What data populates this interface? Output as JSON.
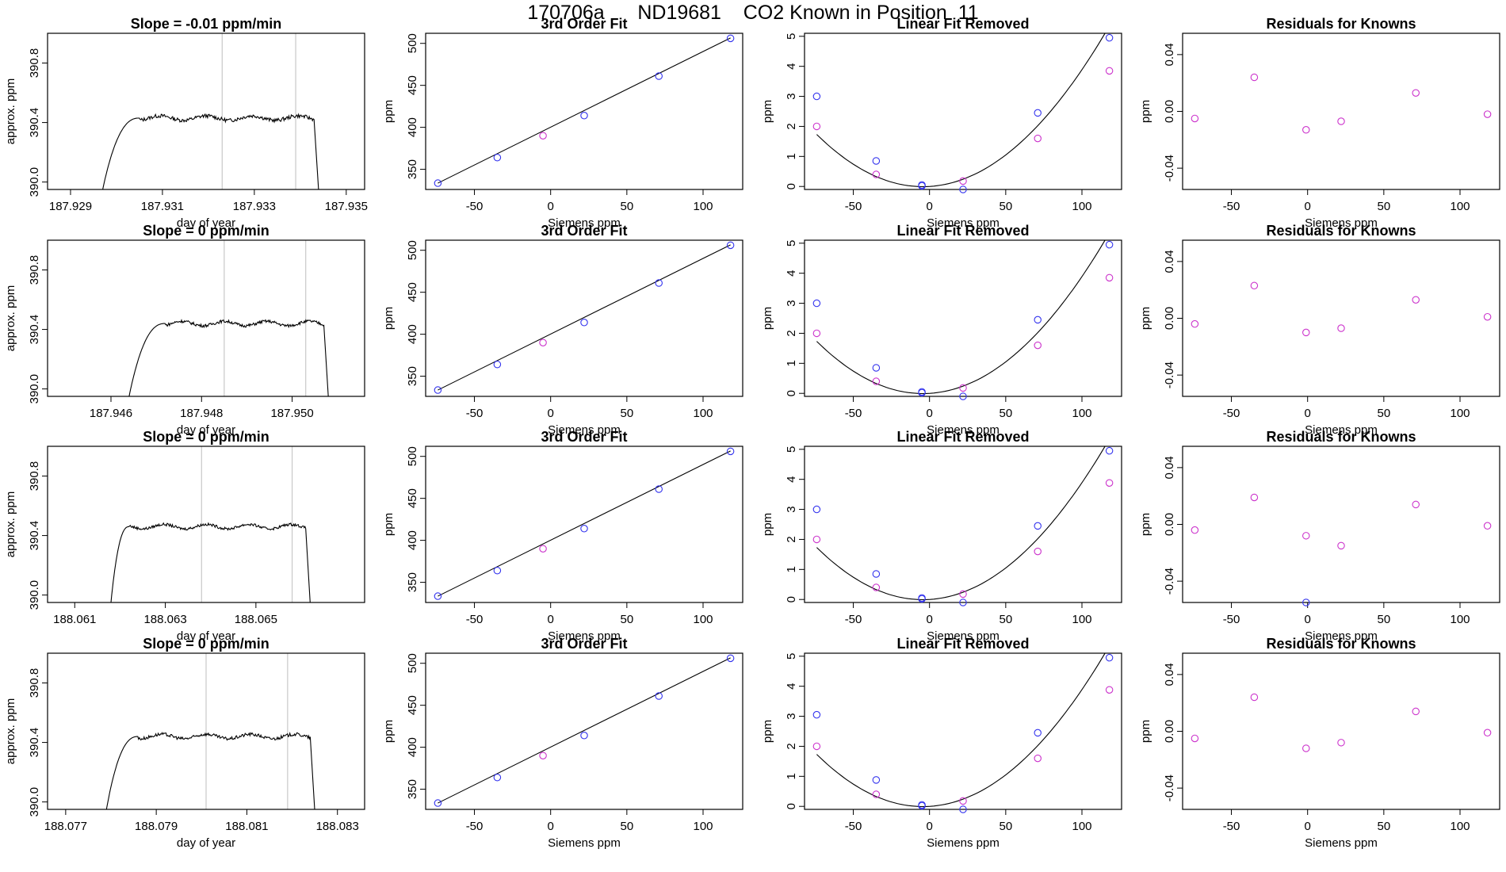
{
  "page": {
    "title": "170706a      ND19681    CO2 Known in Position  11"
  },
  "colors": {
    "frame": "#000000",
    "trace": "#000000",
    "vline": "#c8c8c8",
    "point_blue": "#3333ee",
    "point_magenta": "#cc33cc",
    "curve": "#000000"
  },
  "chart_data": [
    {
      "type": "line",
      "panel": "trace",
      "row": 0,
      "title": "Slope =  -0.01  ppm/min",
      "xlabel": "day of year",
      "ylabel": "approx. ppm",
      "xlim": [
        187.9285,
        187.9354
      ],
      "ylim": [
        389.95,
        391.0
      ],
      "xticks": [
        187.929,
        187.931,
        187.933,
        187.935
      ],
      "xtick_labels": [
        "187.929",
        "187.931",
        "187.933",
        "187.935"
      ],
      "yticks": [
        390.0,
        390.4,
        390.8
      ],
      "ytick_labels": [
        "390.0",
        "390.4",
        "390.8"
      ],
      "vlines": [
        187.9323,
        187.9339
      ],
      "trace": {
        "x_start": 187.9297,
        "x_plateau": 187.9305,
        "x_end": 187.9343,
        "x_drop": 187.9344,
        "y_plateau": 390.43,
        "noise": 0.025,
        "y_start": 389.95
      }
    },
    {
      "type": "line",
      "panel": "trace",
      "row": 1,
      "title": "Slope =  0  ppm/min",
      "xlabel": "day of year",
      "ylabel": "approx. ppm",
      "xlim": [
        187.9446,
        187.9516
      ],
      "ylim": [
        389.95,
        391.0
      ],
      "xticks": [
        187.946,
        187.948,
        187.95
      ],
      "xtick_labels": [
        "187.946",
        "187.948",
        "187.950"
      ],
      "yticks": [
        390.0,
        390.4,
        390.8
      ],
      "ytick_labels": [
        "390.0",
        "390.4",
        "390.8"
      ],
      "vlines": [
        187.9485,
        187.9503
      ],
      "trace": {
        "x_start": 187.9464,
        "x_plateau": 187.9472,
        "x_end": 187.9507,
        "x_drop": 187.9508,
        "y_plateau": 390.44,
        "noise": 0.02,
        "y_start": 389.95
      }
    },
    {
      "type": "line",
      "panel": "trace",
      "row": 2,
      "title": "Slope =  0  ppm/min",
      "xlabel": "day of year",
      "ylabel": "approx. ppm",
      "xlim": [
        188.0604,
        188.0674
      ],
      "ylim": [
        389.95,
        391.0
      ],
      "xticks": [
        188.061,
        188.063,
        188.065
      ],
      "xtick_labels": [
        "188.061",
        "188.063",
        "188.065"
      ],
      "yticks": [
        390.0,
        390.4,
        390.8
      ],
      "ytick_labels": [
        "390.0",
        "390.4",
        "390.8"
      ],
      "vlines": [
        188.0638,
        188.0658
      ],
      "trace": {
        "x_start": 188.0618,
        "x_plateau": 188.0622,
        "x_end": 188.0661,
        "x_drop": 188.0662,
        "y_plateau": 390.46,
        "noise": 0.018,
        "y_start": 389.95
      }
    },
    {
      "type": "line",
      "panel": "trace",
      "row": 3,
      "title": "Slope =  0  ppm/min",
      "xlabel": "day of year",
      "ylabel": "approx. ppm",
      "xlim": [
        188.0766,
        188.0836
      ],
      "ylim": [
        389.95,
        391.0
      ],
      "xticks": [
        188.077,
        188.079,
        188.081,
        188.083
      ],
      "xtick_labels": [
        "188.077",
        "188.079",
        "188.081",
        "188.083"
      ],
      "yticks": [
        390.0,
        390.4,
        390.8
      ],
      "ytick_labels": [
        "390.0",
        "390.4",
        "390.8"
      ],
      "vlines": [
        188.0801,
        188.0819
      ],
      "trace": {
        "x_start": 188.0779,
        "x_plateau": 188.0786,
        "x_end": 188.0824,
        "x_drop": 188.0825,
        "y_plateau": 390.44,
        "noise": 0.022,
        "y_start": 389.95
      }
    },
    {
      "type": "scatter",
      "panel": "fit",
      "row": 0,
      "title": "3rd Order Fit",
      "xlabel": "Siemens ppm",
      "ylabel": "ppm",
      "xlim": [
        -82,
        126
      ],
      "ylim": [
        326,
        512
      ],
      "xticks": [
        -50,
        0,
        50,
        100
      ],
      "xtick_labels": [
        "-50",
        "0",
        "50",
        "100"
      ],
      "yticks": [
        350,
        400,
        450,
        500
      ],
      "ytick_labels": [
        "350",
        "400",
        "450",
        "500"
      ],
      "line": [
        [
          -74,
          333.5
        ],
        [
          118,
          506.5
        ]
      ],
      "points_blue": [
        [
          -74,
          333.5
        ],
        [
          -35,
          364
        ],
        [
          22,
          414
        ],
        [
          71,
          461
        ],
        [
          118,
          506
        ]
      ],
      "points_magenta": [
        [
          -5,
          390
        ]
      ]
    },
    {
      "type": "scatter",
      "panel": "fit",
      "row": 1,
      "title": "3rd Order Fit",
      "xlabel": "Siemens ppm",
      "ylabel": "ppm",
      "xlim": [
        -82,
        126
      ],
      "ylim": [
        326,
        512
      ],
      "xticks": [
        -50,
        0,
        50,
        100
      ],
      "xtick_labels": [
        "-50",
        "0",
        "50",
        "100"
      ],
      "yticks": [
        350,
        400,
        450,
        500
      ],
      "ytick_labels": [
        "350",
        "400",
        "450",
        "500"
      ],
      "line": [
        [
          -74,
          333.5
        ],
        [
          118,
          506.5
        ]
      ],
      "points_blue": [
        [
          -74,
          333.5
        ],
        [
          -35,
          364
        ],
        [
          22,
          414
        ],
        [
          71,
          461
        ],
        [
          118,
          506
        ]
      ],
      "points_magenta": [
        [
          -5,
          390
        ]
      ]
    },
    {
      "type": "scatter",
      "panel": "fit",
      "row": 2,
      "title": "3rd Order Fit",
      "xlabel": "Siemens ppm",
      "ylabel": "ppm",
      "xlim": [
        -82,
        126
      ],
      "ylim": [
        326,
        512
      ],
      "xticks": [
        -50,
        0,
        50,
        100
      ],
      "xtick_labels": [
        "-50",
        "0",
        "50",
        "100"
      ],
      "yticks": [
        350,
        400,
        450,
        500
      ],
      "ytick_labels": [
        "350",
        "400",
        "450",
        "500"
      ],
      "line": [
        [
          -74,
          333.5
        ],
        [
          118,
          506.5
        ]
      ],
      "points_blue": [
        [
          -74,
          333.5
        ],
        [
          -35,
          364
        ],
        [
          22,
          414
        ],
        [
          71,
          461
        ],
        [
          118,
          506
        ]
      ],
      "points_magenta": [
        [
          -5,
          390
        ]
      ]
    },
    {
      "type": "scatter",
      "panel": "fit",
      "row": 3,
      "title": "3rd Order Fit",
      "xlabel": "Siemens ppm",
      "ylabel": "ppm",
      "xlim": [
        -82,
        126
      ],
      "ylim": [
        326,
        512
      ],
      "xticks": [
        -50,
        0,
        50,
        100
      ],
      "xtick_labels": [
        "-50",
        "0",
        "50",
        "100"
      ],
      "yticks": [
        350,
        400,
        450,
        500
      ],
      "ytick_labels": [
        "350",
        "400",
        "450",
        "500"
      ],
      "line": [
        [
          -74,
          333.5
        ],
        [
          118,
          506.5
        ]
      ],
      "points_blue": [
        [
          -74,
          333.5
        ],
        [
          -35,
          364
        ],
        [
          22,
          414
        ],
        [
          71,
          461
        ],
        [
          118,
          506
        ]
      ],
      "points_magenta": [
        [
          -5,
          390
        ]
      ]
    },
    {
      "type": "scatter",
      "panel": "linear",
      "row": 0,
      "title": "Linear Fit Removed",
      "xlabel": "Siemens ppm",
      "ylabel": "ppm",
      "xlim": [
        -82,
        126
      ],
      "ylim": [
        -0.1,
        5.1
      ],
      "xticks": [
        -50,
        0,
        50,
        100
      ],
      "xtick_labels": [
        "-50",
        "0",
        "50",
        "100"
      ],
      "yticks": [
        0,
        1,
        2,
        3,
        4,
        5
      ],
      "ytick_labels": [
        "0",
        "1",
        "2",
        "3",
        "4",
        "5"
      ],
      "curve": {
        "a": 0.000358,
        "b": 0.00308,
        "c": 0.0,
        "x0": -74,
        "x1": 118
      },
      "points_blue": [
        [
          -74,
          3.0
        ],
        [
          -35,
          0.85
        ],
        [
          -5,
          0.05
        ],
        [
          -5,
          0.02
        ],
        [
          22,
          -0.1
        ],
        [
          71,
          2.45
        ],
        [
          118,
          4.95
        ]
      ],
      "points_magenta": [
        [
          -74,
          2.0
        ],
        [
          -35,
          0.4
        ],
        [
          22,
          0.18
        ],
        [
          71,
          1.6
        ],
        [
          118,
          3.85
        ]
      ]
    },
    {
      "type": "scatter",
      "panel": "linear",
      "row": 1,
      "title": "Linear Fit Removed",
      "xlabel": "Siemens ppm",
      "ylabel": "ppm",
      "xlim": [
        -82,
        126
      ],
      "ylim": [
        -0.1,
        5.1
      ],
      "xticks": [
        -50,
        0,
        50,
        100
      ],
      "xtick_labels": [
        "-50",
        "0",
        "50",
        "100"
      ],
      "yticks": [
        0,
        1,
        2,
        3,
        4,
        5
      ],
      "ytick_labels": [
        "0",
        "1",
        "2",
        "3",
        "4",
        "5"
      ],
      "curve": {
        "a": 0.000358,
        "b": 0.00308,
        "c": 0.0,
        "x0": -74,
        "x1": 118
      },
      "points_blue": [
        [
          -74,
          3.0
        ],
        [
          -35,
          0.85
        ],
        [
          -5,
          0.05
        ],
        [
          -5,
          0.02
        ],
        [
          22,
          -0.1
        ],
        [
          71,
          2.45
        ],
        [
          118,
          4.95
        ]
      ],
      "points_magenta": [
        [
          -74,
          2.0
        ],
        [
          -35,
          0.4
        ],
        [
          22,
          0.18
        ],
        [
          71,
          1.6
        ],
        [
          118,
          3.85
        ]
      ]
    },
    {
      "type": "scatter",
      "panel": "linear",
      "row": 2,
      "title": "Linear Fit Removed",
      "xlabel": "Siemens ppm",
      "ylabel": "ppm",
      "xlim": [
        -82,
        126
      ],
      "ylim": [
        -0.1,
        5.1
      ],
      "xticks": [
        -50,
        0,
        50,
        100
      ],
      "xtick_labels": [
        "-50",
        "0",
        "50",
        "100"
      ],
      "yticks": [
        0,
        1,
        2,
        3,
        4,
        5
      ],
      "ytick_labels": [
        "0",
        "1",
        "2",
        "3",
        "4",
        "5"
      ],
      "curve": {
        "a": 0.000358,
        "b": 0.00308,
        "c": 0.0,
        "x0": -74,
        "x1": 118
      },
      "points_blue": [
        [
          -74,
          3.0
        ],
        [
          -35,
          0.85
        ],
        [
          -5,
          0.05
        ],
        [
          -5,
          0.02
        ],
        [
          22,
          -0.1
        ],
        [
          71,
          2.45
        ],
        [
          118,
          4.95
        ]
      ],
      "points_magenta": [
        [
          -74,
          2.0
        ],
        [
          -35,
          0.4
        ],
        [
          22,
          0.18
        ],
        [
          71,
          1.6
        ],
        [
          118,
          3.88
        ]
      ]
    },
    {
      "type": "scatter",
      "panel": "linear",
      "row": 3,
      "title": "Linear Fit Removed",
      "xlabel": "Siemens ppm",
      "ylabel": "ppm",
      "xlim": [
        -82,
        126
      ],
      "ylim": [
        -0.1,
        5.1
      ],
      "xticks": [
        -50,
        0,
        50,
        100
      ],
      "xtick_labels": [
        "-50",
        "0",
        "50",
        "100"
      ],
      "yticks": [
        0,
        1,
        2,
        3,
        4,
        5
      ],
      "ytick_labels": [
        "0",
        "1",
        "2",
        "3",
        "4",
        "5"
      ],
      "curve": {
        "a": 0.000358,
        "b": 0.00308,
        "c": 0.0,
        "x0": -74,
        "x1": 118
      },
      "points_blue": [
        [
          -74,
          3.05
        ],
        [
          -35,
          0.88
        ],
        [
          -5,
          0.05
        ],
        [
          -5,
          0.02
        ],
        [
          22,
          -0.1
        ],
        [
          71,
          2.45
        ],
        [
          118,
          4.95
        ]
      ],
      "points_magenta": [
        [
          -74,
          2.0
        ],
        [
          -35,
          0.4
        ],
        [
          22,
          0.18
        ],
        [
          71,
          1.6
        ],
        [
          118,
          3.88
        ]
      ]
    },
    {
      "type": "scatter",
      "panel": "resid",
      "row": 0,
      "title": "Residuals for Knowns",
      "xlabel": "Siemens ppm",
      "ylabel": "ppm",
      "xlim": [
        -82,
        126
      ],
      "ylim": [
        -0.055,
        0.055
      ],
      "xticks": [
        -50,
        0,
        50,
        100
      ],
      "xtick_labels": [
        "-50",
        "0",
        "50",
        "100"
      ],
      "yticks": [
        -0.04,
        0.0,
        0.04
      ],
      "ytick_labels": [
        "-0.04",
        "0.00",
        "0.04"
      ],
      "points_blue": [],
      "points_magenta": [
        [
          -74,
          -0.005
        ],
        [
          -35,
          0.024
        ],
        [
          -1,
          -0.013
        ],
        [
          22,
          -0.007
        ],
        [
          71,
          0.013
        ],
        [
          118,
          -0.002
        ]
      ]
    },
    {
      "type": "scatter",
      "panel": "resid",
      "row": 1,
      "title": "Residuals for Knowns",
      "xlabel": "Siemens ppm",
      "ylabel": "ppm",
      "xlim": [
        -82,
        126
      ],
      "ylim": [
        -0.055,
        0.055
      ],
      "xticks": [
        -50,
        0,
        50,
        100
      ],
      "xtick_labels": [
        "-50",
        "0",
        "50",
        "100"
      ],
      "yticks": [
        -0.04,
        0.0,
        0.04
      ],
      "ytick_labels": [
        "-0.04",
        "0.00",
        "0.04"
      ],
      "points_blue": [],
      "points_magenta": [
        [
          -74,
          -0.004
        ],
        [
          -35,
          0.023
        ],
        [
          -1,
          -0.01
        ],
        [
          22,
          -0.007
        ],
        [
          71,
          0.013
        ],
        [
          118,
          0.001
        ]
      ]
    },
    {
      "type": "scatter",
      "panel": "resid",
      "row": 2,
      "title": "Residuals for Knowns",
      "xlabel": "Siemens ppm",
      "ylabel": "ppm",
      "xlim": [
        -82,
        126
      ],
      "ylim": [
        -0.055,
        0.055
      ],
      "xticks": [
        -50,
        0,
        50,
        100
      ],
      "xtick_labels": [
        "-50",
        "0",
        "50",
        "100"
      ],
      "yticks": [
        -0.04,
        0.0,
        0.04
      ],
      "ytick_labels": [
        "-0.04",
        "0.00",
        "0.04"
      ],
      "points_blue": [
        [
          -1,
          -0.055
        ]
      ],
      "points_magenta": [
        [
          -74,
          -0.004
        ],
        [
          -35,
          0.019
        ],
        [
          -1,
          -0.008
        ],
        [
          22,
          -0.015
        ],
        [
          71,
          0.014
        ],
        [
          118,
          -0.001
        ]
      ]
    },
    {
      "type": "scatter",
      "panel": "resid",
      "row": 3,
      "title": "Residuals for Knowns",
      "xlabel": "Siemens ppm",
      "ylabel": "ppm",
      "xlim": [
        -82,
        126
      ],
      "ylim": [
        -0.055,
        0.055
      ],
      "xticks": [
        -50,
        0,
        50,
        100
      ],
      "xtick_labels": [
        "-50",
        "0",
        "50",
        "100"
      ],
      "yticks": [
        -0.04,
        0.0,
        0.04
      ],
      "ytick_labels": [
        "-0.04",
        "0.00",
        "0.04"
      ],
      "points_blue": [],
      "points_magenta": [
        [
          -74,
          -0.005
        ],
        [
          -35,
          0.024
        ],
        [
          -1,
          -0.012
        ],
        [
          22,
          -0.008
        ],
        [
          71,
          0.014
        ],
        [
          118,
          -0.001
        ]
      ]
    }
  ]
}
